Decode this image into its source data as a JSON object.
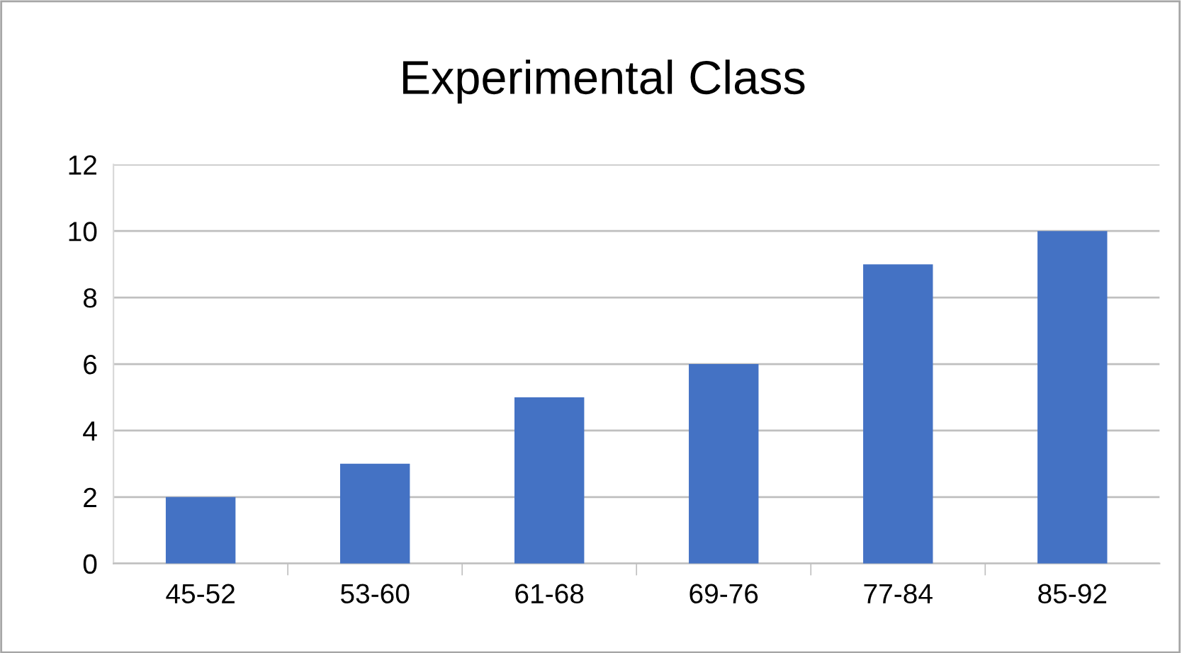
{
  "chart_data": {
    "type": "bar",
    "title": "Experimental Class",
    "categories": [
      "45-52",
      "53-60",
      "61-68",
      "69-76",
      "77-84",
      "85-92"
    ],
    "values": [
      2,
      3,
      5,
      6,
      9,
      10
    ],
    "color": "#4472c4",
    "ylim": [
      0,
      12
    ],
    "yticks": [
      0,
      2,
      4,
      6,
      8,
      10,
      12
    ],
    "grid": "y",
    "legend": false
  }
}
